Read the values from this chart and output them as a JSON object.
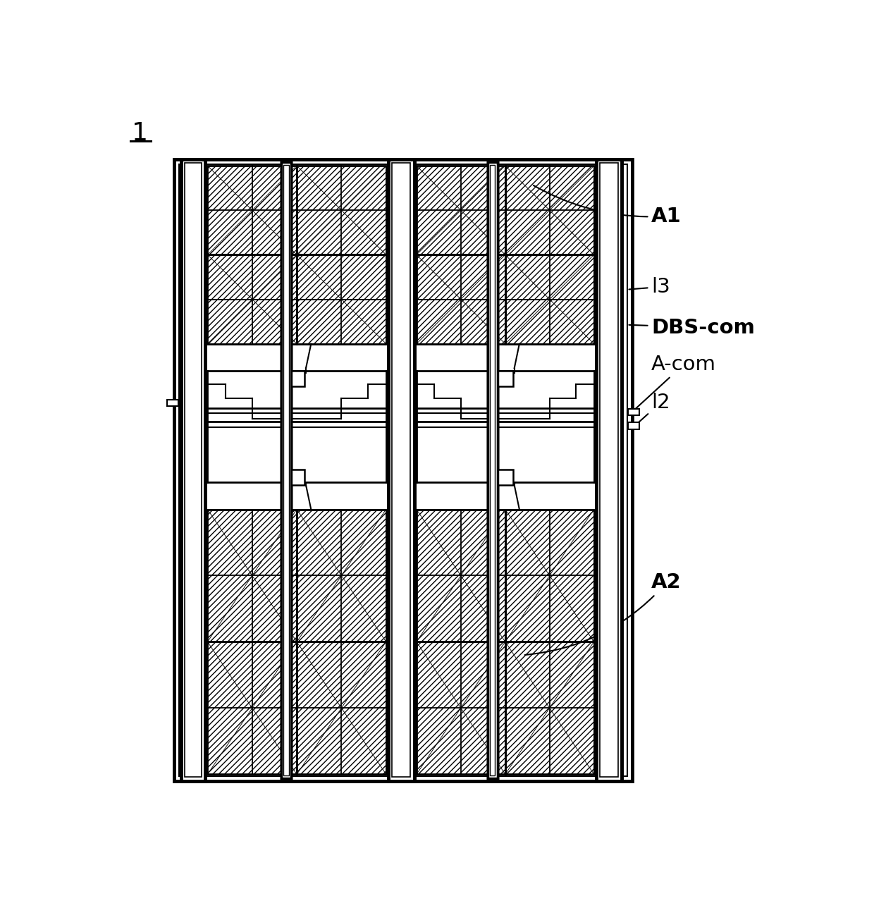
{
  "title_label": "1",
  "label_A1": "A1",
  "label_13": "l3",
  "label_DBS": "DBS-com",
  "label_Acom": "A-com",
  "label_12": "l2",
  "label_A2": "A2",
  "fig_width": 12.4,
  "fig_height": 13.05
}
